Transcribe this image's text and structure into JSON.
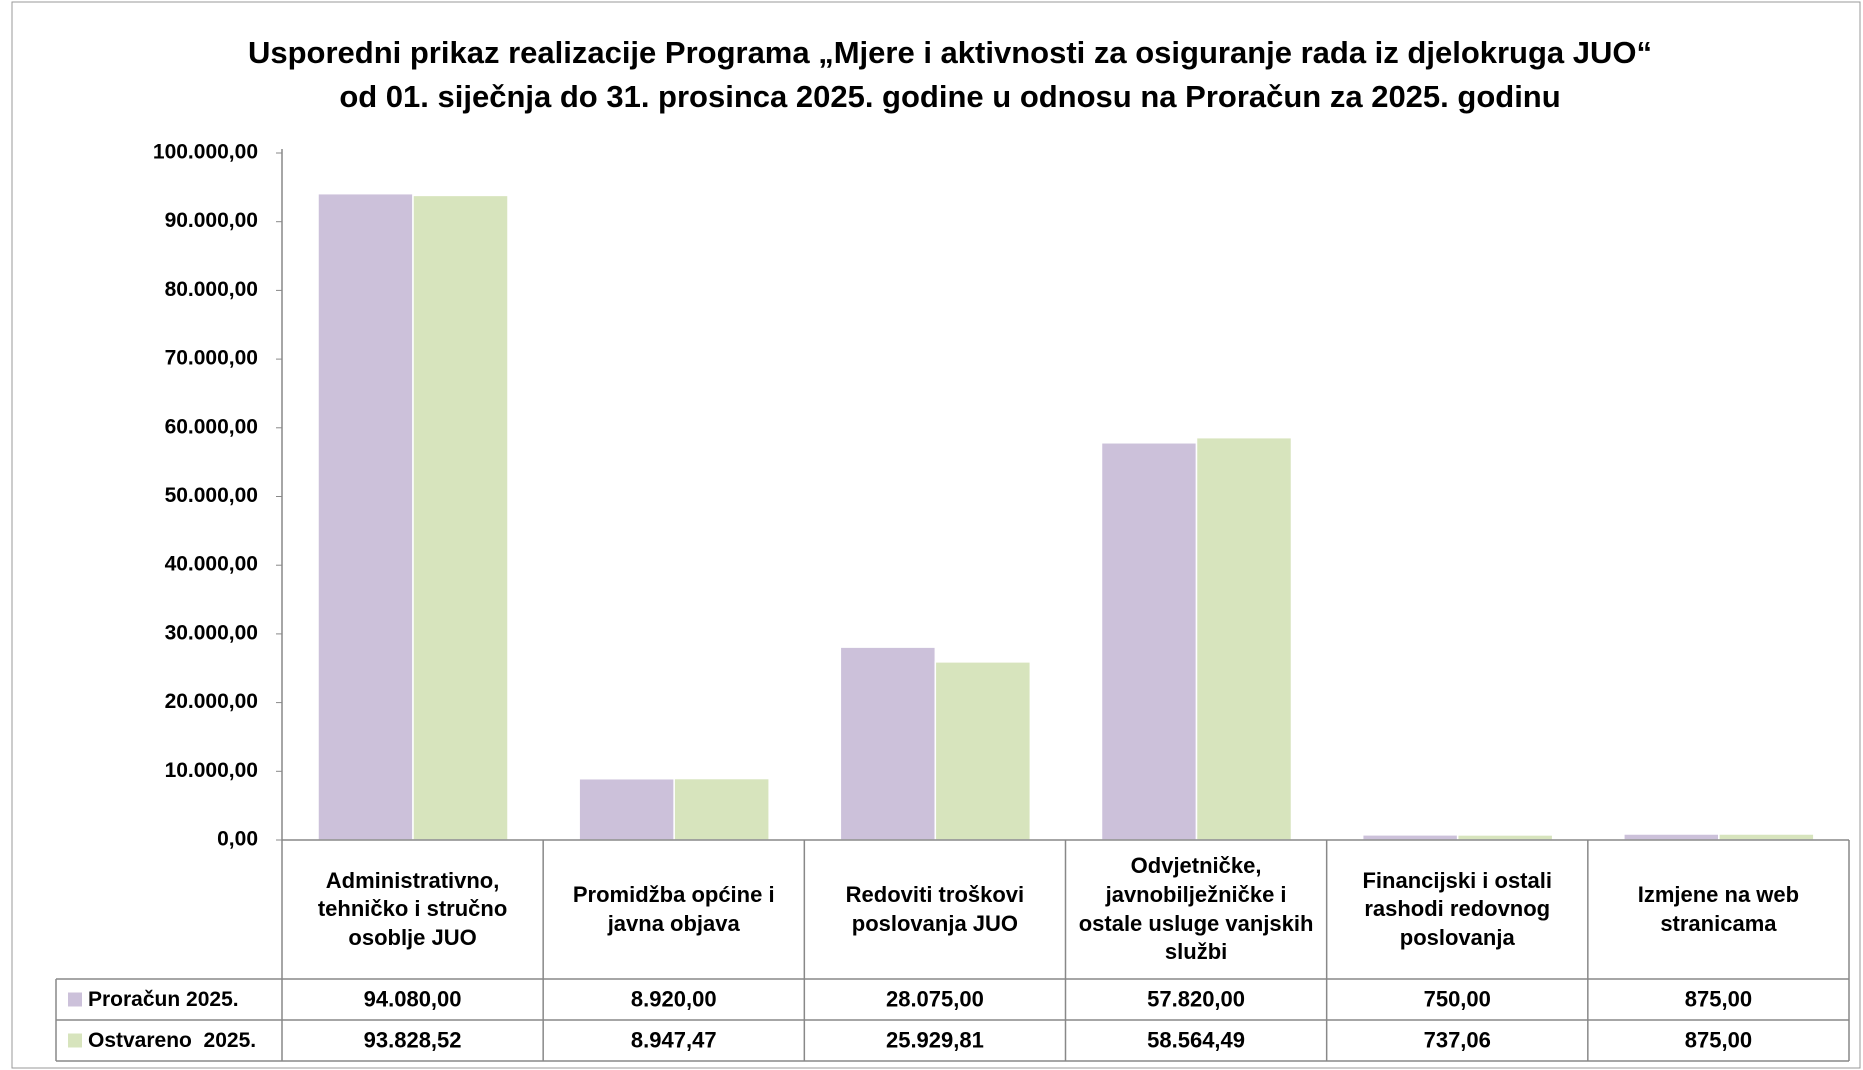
{
  "chart_data": {
    "type": "bar",
    "title": "Usporedni prikaz realizacije Programa „Mjere i aktivnosti za osiguranje rada iz djelokruga JUO“",
    "subtitle": "od 01. siječnja do 31. prosinca 2025. godine u odnosu na Proračun za 2025. godinu",
    "categories": [
      "Administrativno, tehničko i stručno osoblje JUO",
      "Promidžba općine i javna objava",
      "Redoviti troškovi poslovanja JUO",
      "Odvjetničke, javnobilježničke i ostale usluge vanjskih službi",
      "Financijski i ostali rashodi redovnog poslovanja",
      "Izmjene na web stranicama"
    ],
    "series": [
      {
        "name": "Proračun 2025.",
        "color": "#ccc1da",
        "values": [
          94080,
          8920,
          28075,
          57820,
          750,
          875
        ],
        "value_labels": [
          "94.080,00",
          "8.920,00",
          "28.075,00",
          "57.820,00",
          "750,00",
          "875,00"
        ]
      },
      {
        "name": "Ostvareno  2025.",
        "color": "#d7e4bd",
        "values": [
          93828.52,
          8947.47,
          25929.81,
          58564.49,
          737.06,
          875
        ],
        "value_labels": [
          "93.828,52",
          "8.947,47",
          "25.929,81",
          "58.564,49",
          "737,06",
          "875,00"
        ]
      }
    ],
    "ylim": [
      0,
      100000
    ],
    "yticks": [
      {
        "value": 0,
        "label": "0,00"
      },
      {
        "value": 10000,
        "label": "10.000,00"
      },
      {
        "value": 20000,
        "label": "20.000,00"
      },
      {
        "value": 30000,
        "label": "30.000,00"
      },
      {
        "value": 40000,
        "label": "40.000,00"
      },
      {
        "value": 50000,
        "label": "50.000,00"
      },
      {
        "value": 60000,
        "label": "60.000,00"
      },
      {
        "value": 70000,
        "label": "70.000,00"
      },
      {
        "value": 80000,
        "label": "80.000,00"
      },
      {
        "value": 90000,
        "label": "90.000,00"
      },
      {
        "value": 100000,
        "label": "100.000,00"
      }
    ],
    "grid": false
  }
}
